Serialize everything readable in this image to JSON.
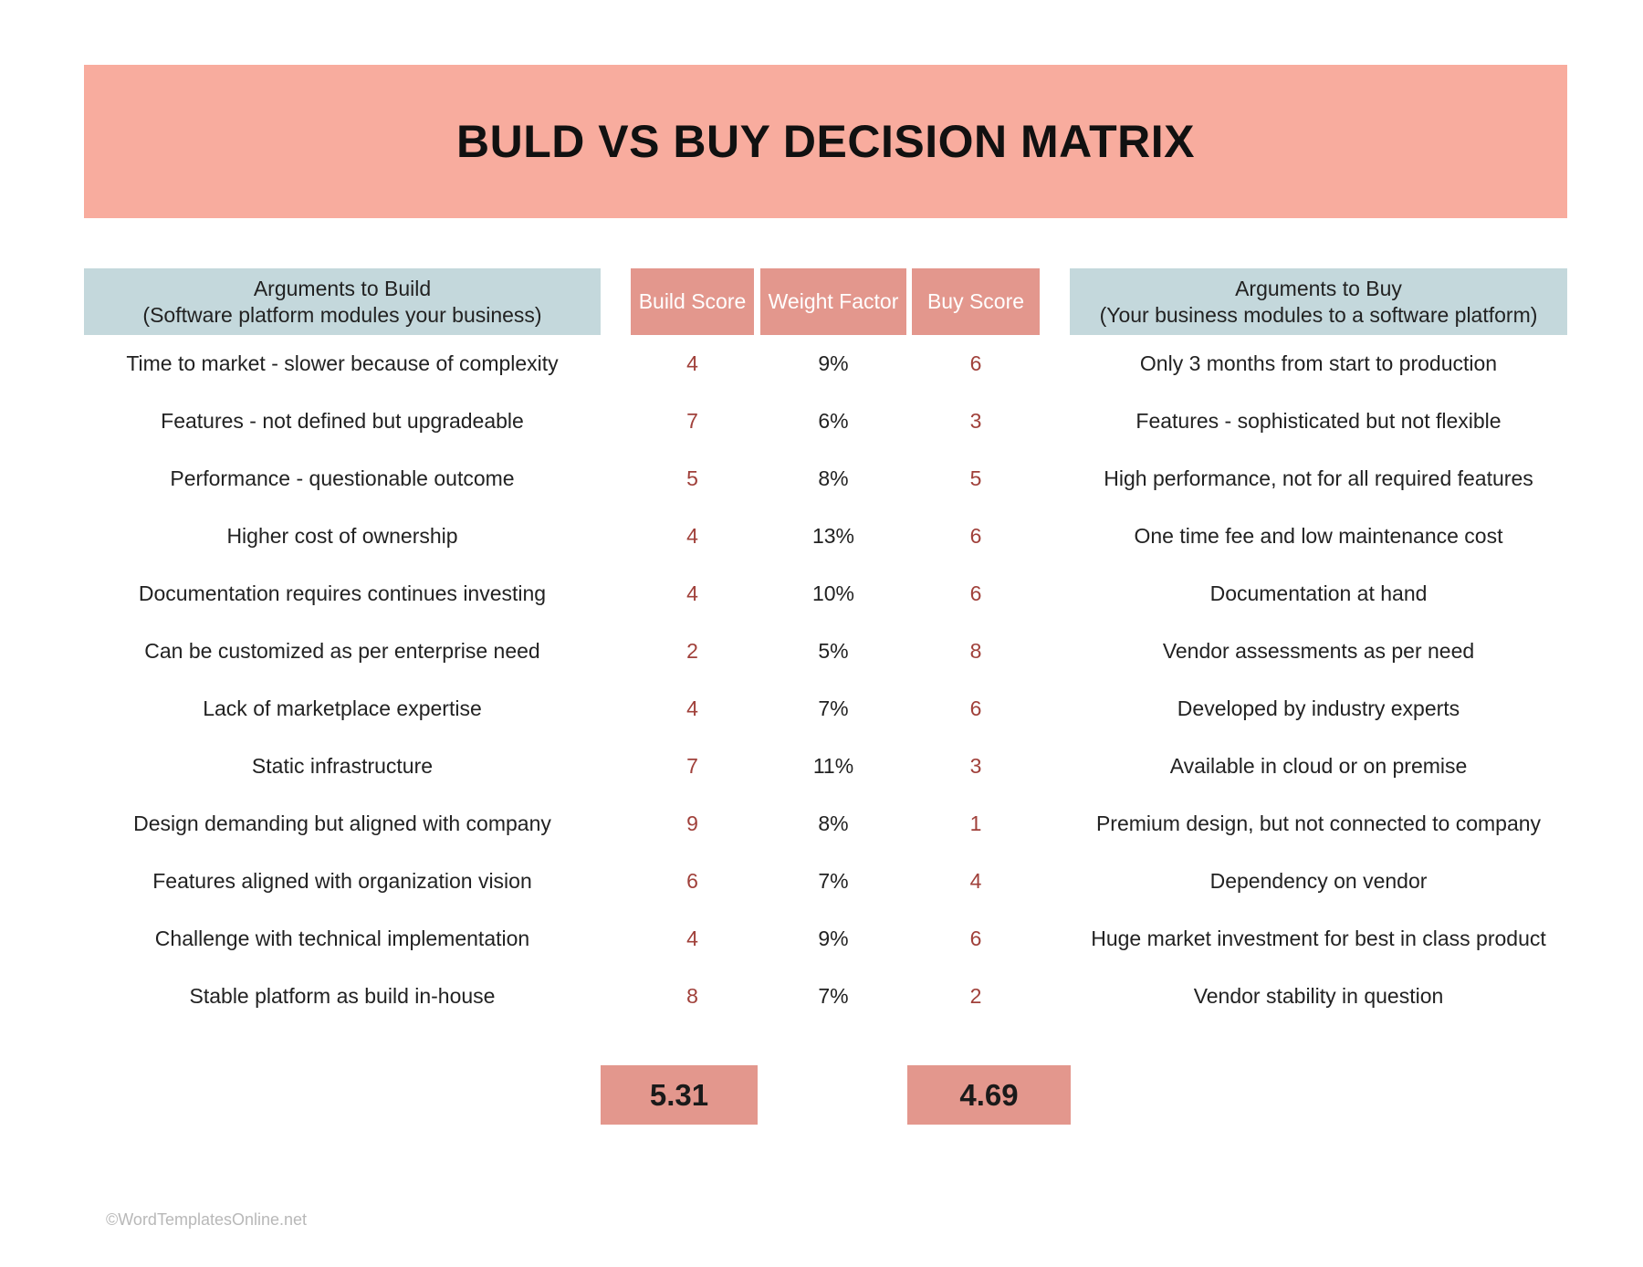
{
  "title": "BULD VS BUY DECISION MATRIX",
  "headers": {
    "build_args_line1": "Arguments to Build",
    "build_args_line2": "(Software platform modules your business)",
    "build_score": "Build Score",
    "weight_factor": "Weight Factor",
    "buy_score": "Buy Score",
    "buy_args_line1": "Arguments to Buy",
    "buy_args_line2": "(Your business modules to a software platform)"
  },
  "rows": [
    {
      "build_arg": "Time to market - slower because of complexity",
      "build_score": "4",
      "weight": "9%",
      "buy_score": "6",
      "buy_arg": "Only 3 months from start to production"
    },
    {
      "build_arg": "Features - not defined but upgradeable",
      "build_score": "7",
      "weight": "6%",
      "buy_score": "3",
      "buy_arg": "Features - sophisticated but not flexible"
    },
    {
      "build_arg": "Performance - questionable outcome",
      "build_score": "5",
      "weight": "8%",
      "buy_score": "5",
      "buy_arg": "High performance, not for all required features"
    },
    {
      "build_arg": "Higher cost of ownership",
      "build_score": "4",
      "weight": "13%",
      "buy_score": "6",
      "buy_arg": "One time fee and low maintenance cost"
    },
    {
      "build_arg": "Documentation requires continues investing",
      "build_score": "4",
      "weight": "10%",
      "buy_score": "6",
      "buy_arg": "Documentation at hand"
    },
    {
      "build_arg": "Can be customized as per enterprise need",
      "build_score": "2",
      "weight": "5%",
      "buy_score": "8",
      "buy_arg": "Vendor assessments as per need"
    },
    {
      "build_arg": "Lack of marketplace expertise",
      "build_score": "4",
      "weight": "7%",
      "buy_score": "6",
      "buy_arg": "Developed by industry experts"
    },
    {
      "build_arg": "Static infrastructure",
      "build_score": "7",
      "weight": "11%",
      "buy_score": "3",
      "buy_arg": "Available in cloud or on premise"
    },
    {
      "build_arg": "Design demanding but aligned with company",
      "build_score": "9",
      "weight": "8%",
      "buy_score": "1",
      "buy_arg": "Premium design, but not connected to company"
    },
    {
      "build_arg": "Features aligned with organization vision",
      "build_score": "6",
      "weight": "7%",
      "buy_score": "4",
      "buy_arg": "Dependency on vendor"
    },
    {
      "build_arg": "Challenge with technical implementation",
      "build_score": "4",
      "weight": "9%",
      "buy_score": "6",
      "buy_arg": "Huge market investment for best in class product"
    },
    {
      "build_arg": "Stable platform as build in-house",
      "build_score": "8",
      "weight": "7%",
      "buy_score": "2",
      "buy_arg": "Vendor stability in question"
    }
  ],
  "totals": {
    "build": "5.31",
    "buy": "4.69"
  },
  "footer": "©WordTemplatesOnline.net",
  "colors": {
    "banner": "#f8ac9e",
    "args_header": "#c4d8dc",
    "score_header": "#e3978d",
    "score_text": "#a0403a"
  }
}
